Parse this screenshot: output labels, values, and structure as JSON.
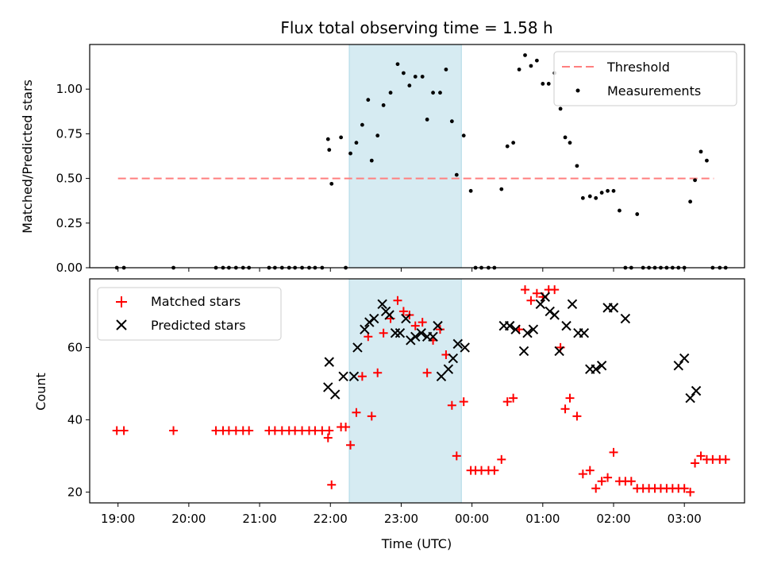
{
  "chart_data": [
    {
      "type": "scatter",
      "title": "Flux total observing time = 1.58 h",
      "ylabel": "Matched/Predicted stars",
      "xlabel": "",
      "xlim": [
        "18:36",
        "03:51"
      ],
      "ylim": [
        0,
        1.25
      ],
      "yticks": [
        "0.00",
        "0.25",
        "0.50",
        "0.75",
        "1.00"
      ],
      "shaded_region": [
        "22:16",
        "23:51"
      ],
      "legend_position": "top-right",
      "legend": [
        "Threshold",
        "Measurements"
      ],
      "threshold": {
        "name": "Threshold",
        "value": 0.5,
        "x_range": [
          "19:00",
          "03:25"
        ],
        "color": "#ff7f7f"
      },
      "measurements": [
        [
          "18:59",
          0
        ],
        [
          "19:05",
          0
        ],
        [
          "19:47",
          0
        ],
        [
          "20:23",
          0
        ],
        [
          "20:29",
          0
        ],
        [
          "20:34",
          0
        ],
        [
          "20:40",
          0
        ],
        [
          "20:46",
          0
        ],
        [
          "20:51",
          0
        ],
        [
          "21:08",
          0
        ],
        [
          "21:13",
          0
        ],
        [
          "21:19",
          0
        ],
        [
          "21:25",
          0
        ],
        [
          "21:30",
          0
        ],
        [
          "21:36",
          0
        ],
        [
          "21:42",
          0
        ],
        [
          "21:47",
          0
        ],
        [
          "21:53",
          0
        ],
        [
          "21:58",
          0.72
        ],
        [
          "21:59",
          0.66
        ],
        [
          "22:01",
          0.47
        ],
        [
          "22:09",
          0.73
        ],
        [
          "22:13",
          0
        ],
        [
          "22:17",
          0.64
        ],
        [
          "22:22",
          0.7
        ],
        [
          "22:27",
          0.8
        ],
        [
          "22:32",
          0.94
        ],
        [
          "22:35",
          0.6
        ],
        [
          "22:40",
          0.74
        ],
        [
          "22:45",
          0.91
        ],
        [
          "22:51",
          0.98
        ],
        [
          "22:57",
          1.14
        ],
        [
          "23:02",
          1.09
        ],
        [
          "23:07",
          1.02
        ],
        [
          "23:12",
          1.07
        ],
        [
          "23:18",
          1.07
        ],
        [
          "23:22",
          0.83
        ],
        [
          "23:27",
          0.98
        ],
        [
          "23:33",
          0.98
        ],
        [
          "23:38",
          1.11
        ],
        [
          "23:43",
          0.82
        ],
        [
          "23:47",
          0.52
        ],
        [
          "23:53",
          0.74
        ],
        [
          "23:59",
          0.43
        ],
        [
          "00:03",
          0
        ],
        [
          "00:08",
          0
        ],
        [
          "00:14",
          0
        ],
        [
          "00:19",
          0
        ],
        [
          "00:25",
          0.44
        ],
        [
          "00:30",
          0.68
        ],
        [
          "00:35",
          0.7
        ],
        [
          "00:40",
          1.11
        ],
        [
          "00:45",
          1.19
        ],
        [
          "00:50",
          1.13
        ],
        [
          "00:55",
          1.16
        ],
        [
          "01:00",
          1.03
        ],
        [
          "01:05",
          1.03
        ],
        [
          "01:10",
          1.09
        ],
        [
          "01:15",
          0.89
        ],
        [
          "01:19",
          0.73
        ],
        [
          "01:23",
          0.7
        ],
        [
          "01:29",
          0.57
        ],
        [
          "01:34",
          0.39
        ],
        [
          "01:40",
          0.4
        ],
        [
          "01:45",
          0.39
        ],
        [
          "01:50",
          0.42
        ],
        [
          "01:55",
          0.43
        ],
        [
          "02:00",
          0.43
        ],
        [
          "02:05",
          0.32
        ],
        [
          "02:10",
          0
        ],
        [
          "02:15",
          0
        ],
        [
          "02:20",
          0.3
        ],
        [
          "02:25",
          0
        ],
        [
          "02:30",
          0
        ],
        [
          "02:35",
          0
        ],
        [
          "02:40",
          0
        ],
        [
          "02:45",
          0
        ],
        [
          "02:50",
          0
        ],
        [
          "02:55",
          0
        ],
        [
          "03:00",
          0
        ],
        [
          "03:05",
          0.37
        ],
        [
          "03:09",
          0.49
        ],
        [
          "03:14",
          0.65
        ],
        [
          "03:19",
          0.6
        ],
        [
          "03:24",
          0
        ],
        [
          "03:30",
          0
        ],
        [
          "03:35",
          0
        ]
      ]
    },
    {
      "type": "scatter",
      "xlabel": "Time (UTC)",
      "ylabel": "Count",
      "xlim": [
        "18:36",
        "03:51"
      ],
      "ylim": [
        17,
        79
      ],
      "xticks": [
        "19:00",
        "20:00",
        "21:00",
        "22:00",
        "23:00",
        "00:00",
        "01:00",
        "02:00",
        "03:00"
      ],
      "yticks": [
        "20",
        "40",
        "60"
      ],
      "shaded_region": [
        "22:16",
        "23:51"
      ],
      "legend_position": "top-left",
      "series": [
        {
          "name": "Matched stars",
          "marker": "+",
          "color": "#ff0000",
          "points": [
            [
              "18:59",
              37
            ],
            [
              "19:05",
              37
            ],
            [
              "19:47",
              37
            ],
            [
              "20:23",
              37
            ],
            [
              "20:29",
              37
            ],
            [
              "20:34",
              37
            ],
            [
              "20:40",
              37
            ],
            [
              "20:46",
              37
            ],
            [
              "20:51",
              37
            ],
            [
              "21:08",
              37
            ],
            [
              "21:13",
              37
            ],
            [
              "21:19",
              37
            ],
            [
              "21:25",
              37
            ],
            [
              "21:30",
              37
            ],
            [
              "21:36",
              37
            ],
            [
              "21:42",
              37
            ],
            [
              "21:47",
              37
            ],
            [
              "21:53",
              37
            ],
            [
              "21:58",
              35
            ],
            [
              "21:59",
              37
            ],
            [
              "22:01",
              22
            ],
            [
              "22:09",
              38
            ],
            [
              "22:13",
              38
            ],
            [
              "22:17",
              33
            ],
            [
              "22:22",
              42
            ],
            [
              "22:27",
              52
            ],
            [
              "22:32",
              63
            ],
            [
              "22:35",
              41
            ],
            [
              "22:40",
              53
            ],
            [
              "22:45",
              64
            ],
            [
              "22:51",
              68
            ],
            [
              "22:57",
              73
            ],
            [
              "23:02",
              70
            ],
            [
              "23:07",
              69
            ],
            [
              "23:12",
              66
            ],
            [
              "23:18",
              67
            ],
            [
              "23:22",
              53
            ],
            [
              "23:27",
              62
            ],
            [
              "23:33",
              65
            ],
            [
              "23:38",
              58
            ],
            [
              "23:43",
              44
            ],
            [
              "23:47",
              30
            ],
            [
              "23:53",
              45
            ],
            [
              "23:59",
              26
            ],
            [
              "00:03",
              26
            ],
            [
              "00:08",
              26
            ],
            [
              "00:14",
              26
            ],
            [
              "00:19",
              26
            ],
            [
              "00:25",
              29
            ],
            [
              "00:30",
              45
            ],
            [
              "00:35",
              46
            ],
            [
              "00:40",
              65
            ],
            [
              "00:45",
              76
            ],
            [
              "00:50",
              73
            ],
            [
              "00:55",
              75
            ],
            [
              "01:00",
              74
            ],
            [
              "01:05",
              76
            ],
            [
              "01:10",
              76
            ],
            [
              "01:15",
              60
            ],
            [
              "01:19",
              43
            ],
            [
              "01:23",
              46
            ],
            [
              "01:29",
              41
            ],
            [
              "01:34",
              25
            ],
            [
              "01:40",
              26
            ],
            [
              "01:45",
              21
            ],
            [
              "01:50",
              23
            ],
            [
              "01:55",
              24
            ],
            [
              "02:00",
              31
            ],
            [
              "02:05",
              23
            ],
            [
              "02:10",
              23
            ],
            [
              "02:15",
              23
            ],
            [
              "02:20",
              21
            ],
            [
              "02:25",
              21
            ],
            [
              "02:30",
              21
            ],
            [
              "02:35",
              21
            ],
            [
              "02:40",
              21
            ],
            [
              "02:45",
              21
            ],
            [
              "02:50",
              21
            ],
            [
              "02:55",
              21
            ],
            [
              "03:00",
              21
            ],
            [
              "03:05",
              20
            ],
            [
              "03:09",
              28
            ],
            [
              "03:14",
              30
            ],
            [
              "03:19",
              29
            ],
            [
              "03:24",
              29
            ],
            [
              "03:30",
              29
            ],
            [
              "03:35",
              29
            ]
          ]
        },
        {
          "name": "Predicted stars",
          "marker": "x",
          "color": "#000000",
          "points": [
            [
              "21:58",
              49
            ],
            [
              "21:59",
              56
            ],
            [
              "22:04",
              47
            ],
            [
              "22:11",
              52
            ],
            [
              "22:20",
              52
            ],
            [
              "22:23",
              60
            ],
            [
              "22:29",
              65
            ],
            [
              "22:33",
              67
            ],
            [
              "22:37",
              68
            ],
            [
              "22:44",
              72
            ],
            [
              "22:47",
              70
            ],
            [
              "22:50",
              69
            ],
            [
              "22:55",
              64
            ],
            [
              "22:59",
              64
            ],
            [
              "23:04",
              68
            ],
            [
              "23:08",
              62
            ],
            [
              "23:12",
              63
            ],
            [
              "23:17",
              64
            ],
            [
              "23:22",
              63
            ],
            [
              "23:27",
              63
            ],
            [
              "23:31",
              66
            ],
            [
              "23:34",
              52
            ],
            [
              "23:40",
              54
            ],
            [
              "23:44",
              57
            ],
            [
              "23:48",
              61
            ],
            [
              "23:54",
              60
            ],
            [
              "00:27",
              66
            ],
            [
              "00:32",
              66
            ],
            [
              "00:37",
              65
            ],
            [
              "00:44",
              59
            ],
            [
              "00:47",
              64
            ],
            [
              "00:52",
              65
            ],
            [
              "00:58",
              72
            ],
            [
              "01:02",
              74
            ],
            [
              "01:06",
              70
            ],
            [
              "01:10",
              69
            ],
            [
              "01:14",
              59
            ],
            [
              "01:20",
              66
            ],
            [
              "01:25",
              72
            ],
            [
              "01:30",
              64
            ],
            [
              "01:35",
              64
            ],
            [
              "01:40",
              54
            ],
            [
              "01:45",
              54
            ],
            [
              "01:50",
              55
            ],
            [
              "01:55",
              71
            ],
            [
              "02:00",
              71
            ],
            [
              "02:10",
              68
            ],
            [
              "02:55",
              55
            ],
            [
              "03:00",
              57
            ],
            [
              "03:05",
              46
            ],
            [
              "03:10",
              48
            ]
          ]
        }
      ]
    }
  ],
  "colors": {
    "shade": "#add8e6",
    "threshold": "#ff7f7f",
    "matched": "#ff0000",
    "predicted": "#000000"
  }
}
